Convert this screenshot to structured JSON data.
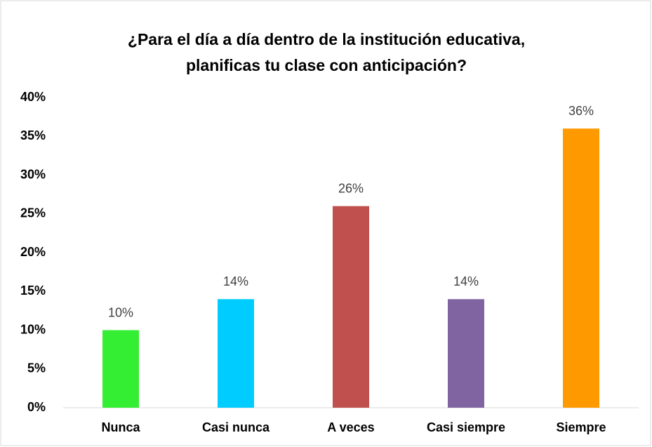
{
  "chart_data": {
    "type": "bar",
    "title": [
      "¿Para el día a día dentro de la institución educativa,",
      "planificas tu clase con anticipación?"
    ],
    "categories": [
      "Nunca",
      "Casi nunca",
      "A veces",
      "Casi siempre",
      "Siempre"
    ],
    "values": [
      10,
      14,
      26,
      14,
      36
    ],
    "value_labels": [
      "10%",
      "14%",
      "26%",
      "14%",
      "36%"
    ],
    "colors": [
      "#33ee33",
      "#00ccff",
      "#c0504d",
      "#8064a2",
      "#ff9900"
    ],
    "ylim": [
      0,
      40
    ],
    "yticks": [
      {
        "value": 0,
        "label": "0%"
      },
      {
        "value": 5,
        "label": "5%"
      },
      {
        "value": 10,
        "label": "10%"
      },
      {
        "value": 15,
        "label": "15%"
      },
      {
        "value": 20,
        "label": "20%"
      },
      {
        "value": 25,
        "label": "25%"
      },
      {
        "value": 30,
        "label": "30%"
      },
      {
        "value": 35,
        "label": "35%"
      },
      {
        "value": 40,
        "label": "40%"
      }
    ],
    "grid": false
  }
}
